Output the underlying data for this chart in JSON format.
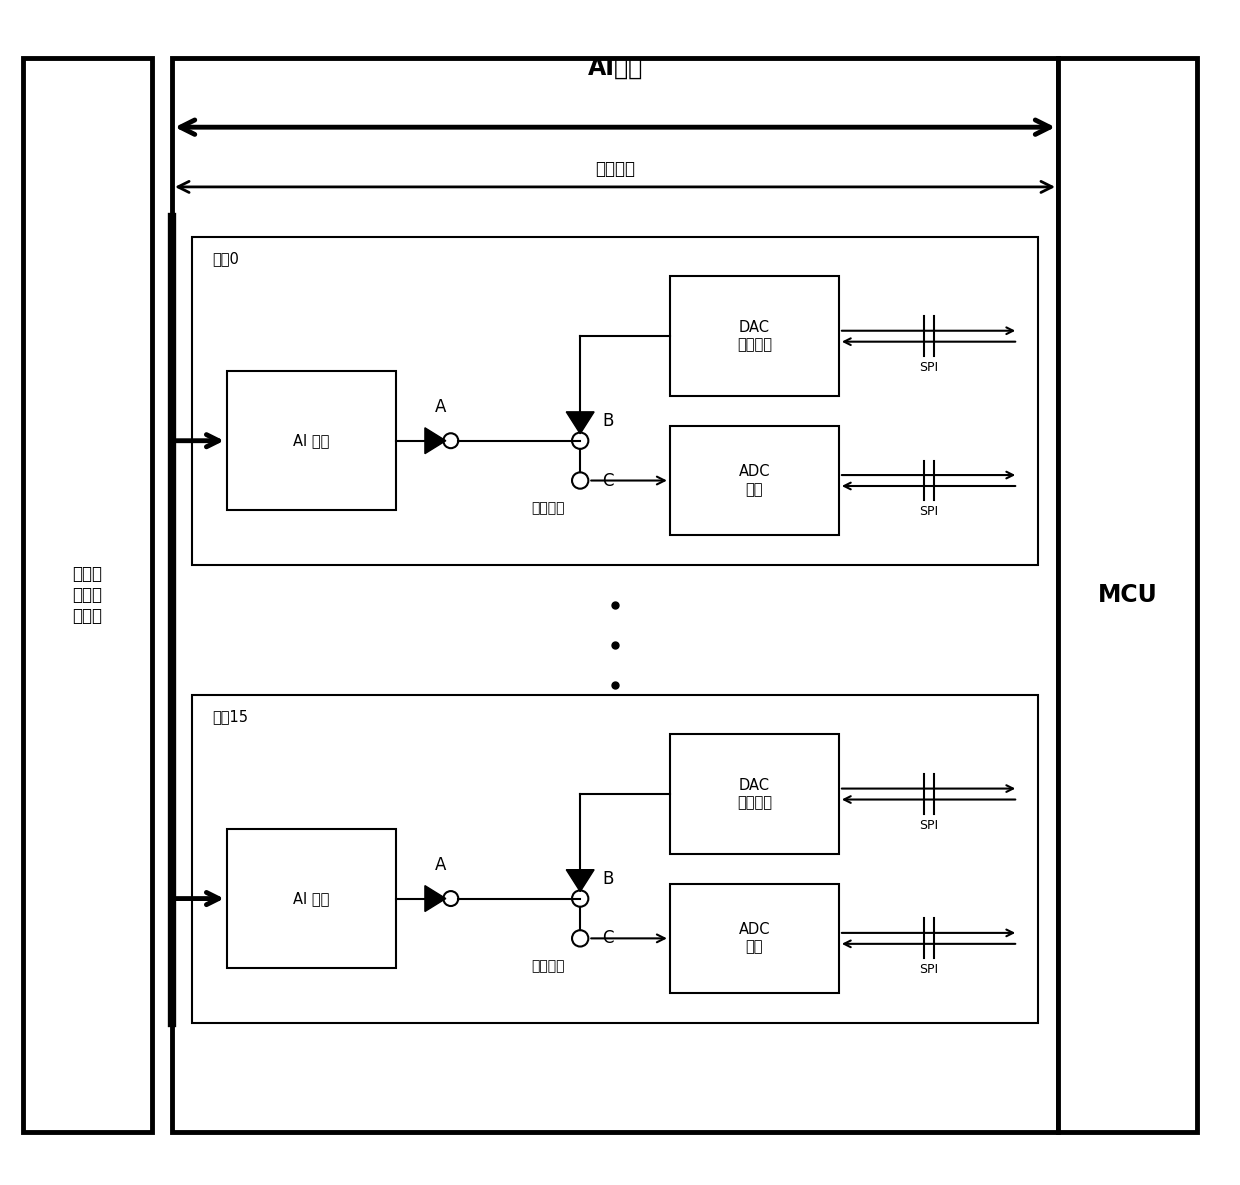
{
  "fig_width": 12.4,
  "fig_height": 11.85,
  "bg_color": "#ffffff",
  "lc": "#000000",
  "ai_module_title": "AI模块",
  "serial_comm": "串行通信",
  "mcu_label": "MCU",
  "left_label": "可编程\n仪用校\n准设备",
  "channel0": "通道0",
  "channel15": "通道15",
  "ai_front": "AI 前端",
  "dac_diag": "DAC\n诊断输出",
  "adc_acq": "ADC\n采集",
  "switch_label": "电控开关",
  "spi": "SPI",
  "label_A": "A",
  "label_B": "B",
  "label_C": "C"
}
